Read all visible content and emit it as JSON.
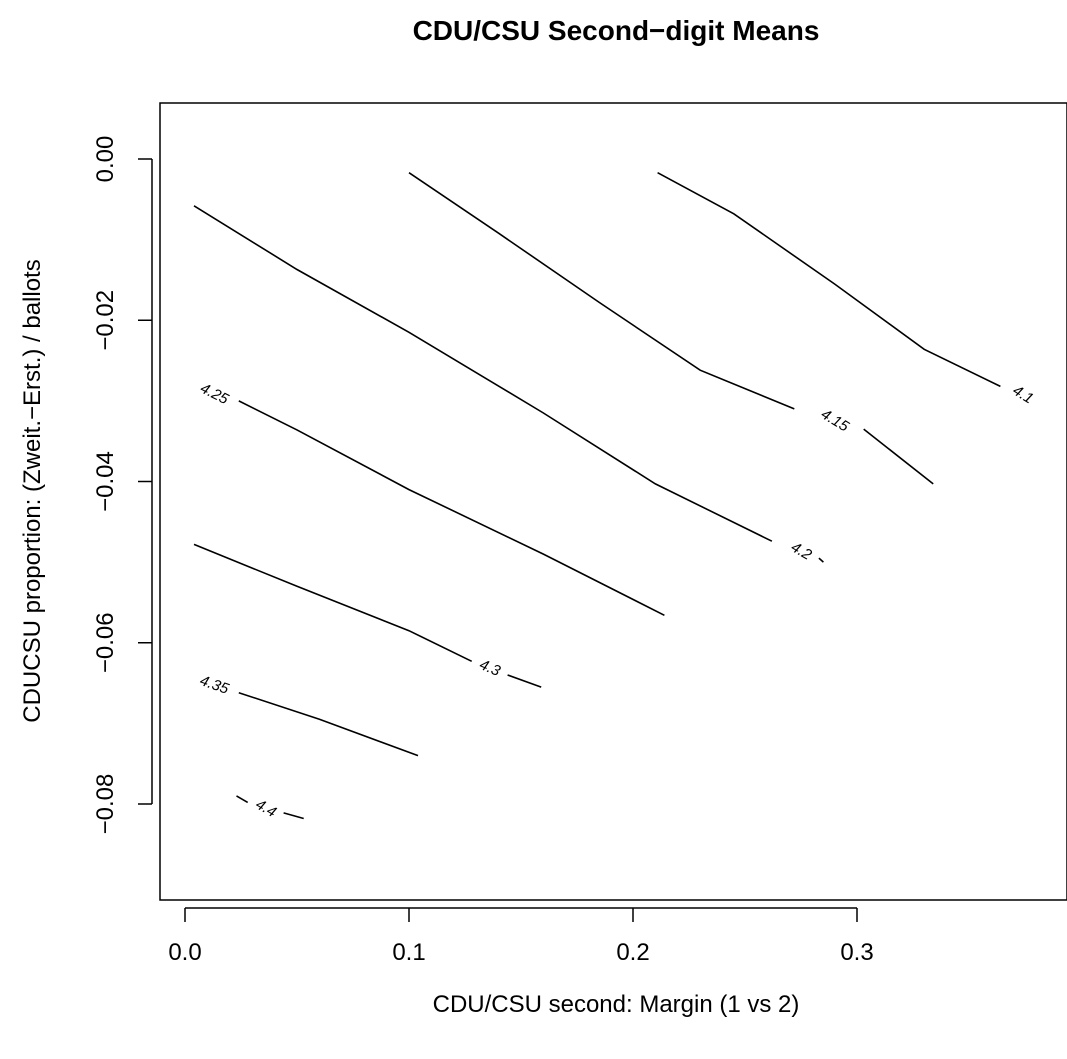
{
  "chart_data": {
    "type": "contour",
    "title": "CDU/CSU Second−digit Means",
    "xlabel": "CDU/CSU second:  Margin (1 vs 2)",
    "ylabel": "CDUCSU proportion:  (Zweit.−Erst.) / ballots",
    "xlim": [
      -0.012,
      0.395
    ],
    "ylim": [
      -0.092,
      0.0055
    ],
    "x_ticks": [
      0.0,
      0.1,
      0.2,
      0.3
    ],
    "x_tick_labels": [
      "0.0",
      "0.1",
      "0.2",
      "0.3"
    ],
    "y_ticks": [
      0.0,
      -0.02,
      -0.04,
      -0.06,
      -0.08
    ],
    "y_tick_labels": [
      "0.00",
      "−0.02",
      "−0.04",
      "−0.06",
      "−0.08"
    ],
    "grid": false,
    "contours": [
      {
        "level": 4.1,
        "label": "4.1",
        "label_at": [
          0.374,
          -0.0293
        ],
        "points": [
          [
            0.211,
            -0.0017
          ],
          [
            0.245,
            -0.0068
          ],
          [
            0.29,
            -0.0155
          ],
          [
            0.33,
            -0.0236
          ],
          [
            0.364,
            -0.0282
          ]
        ]
      },
      {
        "level": 4.15,
        "label": "4.15",
        "label_at": [
          0.29,
          -0.0325
        ],
        "points": [
          [
            0.1,
            -0.0017
          ],
          [
            0.14,
            -0.0092
          ],
          [
            0.185,
            -0.0178
          ],
          [
            0.23,
            -0.0262
          ],
          [
            0.272,
            -0.031
          ]
        ],
        "points2": [
          [
            0.303,
            -0.0335
          ],
          [
            0.334,
            -0.0403
          ]
        ]
      },
      {
        "level": 4.2,
        "label": "4.2",
        "label_at": [
          0.275,
          -0.0487
        ],
        "points": [
          [
            0.004,
            -0.0058
          ],
          [
            0.05,
            -0.0137
          ],
          [
            0.1,
            -0.0215
          ],
          [
            0.16,
            -0.0315
          ],
          [
            0.21,
            -0.0403
          ],
          [
            0.262,
            -0.0474
          ]
        ],
        "points2": [
          [
            0.283,
            -0.0495
          ],
          [
            0.285,
            -0.05
          ]
        ]
      },
      {
        "level": 4.25,
        "label": "4.25",
        "label_at": [
          0.013,
          -0.0292
        ],
        "points": [
          [
            0.024,
            -0.03
          ],
          [
            0.05,
            -0.0336
          ],
          [
            0.1,
            -0.041
          ],
          [
            0.16,
            -0.049
          ],
          [
            0.214,
            -0.0566
          ]
        ]
      },
      {
        "level": 4.3,
        "label": "4.3",
        "label_at": [
          0.136,
          -0.0632
        ],
        "points": [
          [
            0.004,
            -0.0478
          ],
          [
            0.05,
            -0.053
          ],
          [
            0.1,
            -0.0585
          ],
          [
            0.128,
            -0.0623
          ]
        ],
        "points2": [
          [
            0.144,
            -0.064
          ],
          [
            0.159,
            -0.0655
          ]
        ]
      },
      {
        "level": 4.35,
        "label": "4.35",
        "label_at": [
          0.013,
          -0.0653
        ],
        "points": [
          [
            0.024,
            -0.0662
          ],
          [
            0.06,
            -0.0695
          ],
          [
            0.104,
            -0.074
          ]
        ]
      },
      {
        "level": 4.4,
        "label": "4.4",
        "label_at": [
          0.036,
          -0.0806
        ],
        "points": [
          [
            0.023,
            -0.079
          ],
          [
            0.028,
            -0.0798
          ]
        ],
        "points2": [
          [
            0.044,
            -0.0811
          ],
          [
            0.053,
            -0.0818
          ]
        ]
      }
    ]
  }
}
